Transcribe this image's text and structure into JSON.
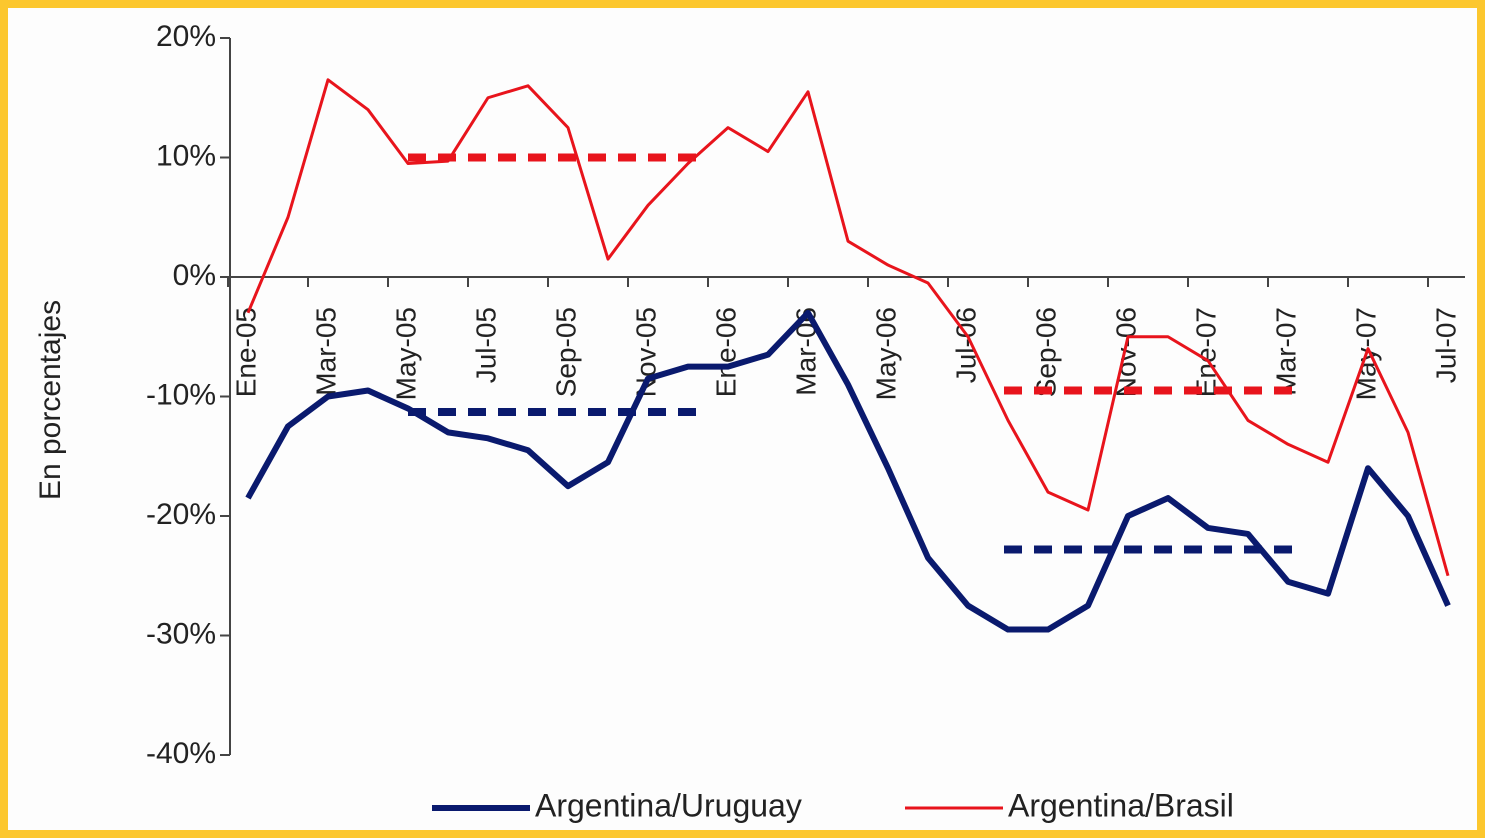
{
  "chart_data": {
    "type": "line",
    "y_label": "En porcentajes",
    "categories": [
      "Ene-05",
      null,
      "Mar-05",
      null,
      "May-05",
      null,
      "Jul-05",
      null,
      "Sep-05",
      null,
      "Nov-05",
      null,
      "Ene-06",
      null,
      "Mar-06",
      null,
      "May-06",
      null,
      "Jul-06",
      null,
      "Sep-06",
      null,
      "Nov-06",
      null,
      "Ene-07",
      null,
      "Mar-07",
      null,
      "May-07",
      null,
      "Jul-07"
    ],
    "series": [
      {
        "name": "Argentina/Uruguay",
        "color": "#0a1a6e",
        "width": 6,
        "values": [
          -18.5,
          -12.5,
          -10,
          -9.5,
          -11,
          -13,
          -13.5,
          -14.5,
          -17.5,
          -15.5,
          -8.5,
          -7.5,
          -7.5,
          -6.5,
          -3,
          -9,
          -16,
          -23.5,
          -27.5,
          -29.5,
          -29.5,
          -27.5,
          -20,
          -18.5,
          -21,
          -21.5,
          -25.5,
          -26.5,
          -16,
          -20,
          -27.5
        ]
      },
      {
        "name": "Argentina/Brasil",
        "color": "#e8141c",
        "width": 3,
        "values": [
          -3,
          5,
          16.5,
          14,
          9.5,
          9.7,
          15,
          16,
          12.5,
          1.5,
          6,
          9.5,
          12.5,
          10.5,
          15.5,
          3,
          1,
          -0.5,
          -5,
          -12,
          -18,
          -19.5,
          -5,
          -5,
          -7,
          -12,
          -14,
          -15.5,
          -6,
          -13,
          -25
        ]
      }
    ],
    "reference_lines": [
      {
        "color": "#e8141c",
        "value": 10,
        "start": 4,
        "end": 11.4
      },
      {
        "color": "#0a1a6e",
        "value": -11.3,
        "start": 4,
        "end": 11.4
      },
      {
        "color": "#e8141c",
        "value": -9.5,
        "start": 18.9,
        "end": 26.4
      },
      {
        "color": "#0a1a6e",
        "value": -22.8,
        "start": 18.9,
        "end": 26.4
      }
    ],
    "ylim": [
      -40,
      20
    ],
    "yticks": [
      {
        "value": -40,
        "label": "-40%"
      },
      {
        "value": -30,
        "label": "-30%"
      },
      {
        "value": -20,
        "label": "-20%"
      },
      {
        "value": -10,
        "label": "-10%"
      },
      {
        "value": 0,
        "label": "0%"
      },
      {
        "value": 10,
        "label": "10%"
      },
      {
        "value": 20,
        "label": "20%"
      }
    ],
    "legend": "bottom"
  }
}
